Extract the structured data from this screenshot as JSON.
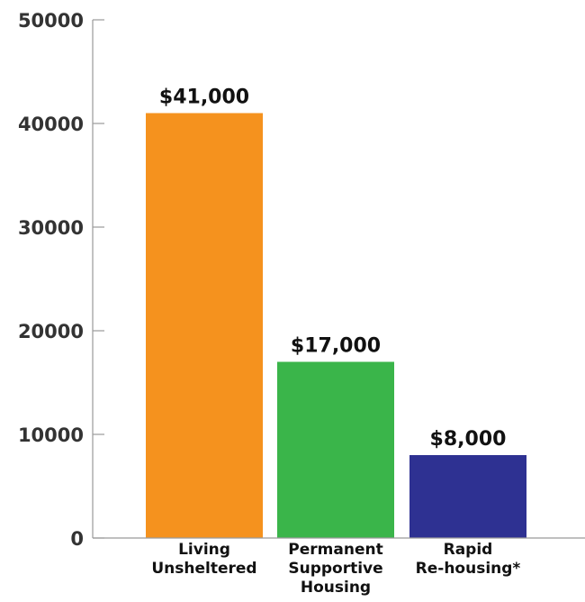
{
  "chart_data": {
    "type": "bar",
    "categories": [
      [
        "Living",
        "Unsheltered"
      ],
      [
        "Permanent",
        "Supportive",
        "Housing"
      ],
      [
        "Rapid",
        "Re-housing*"
      ]
    ],
    "values": [
      41000,
      17000,
      8000
    ],
    "data_labels": [
      "$41,000",
      "$17,000",
      "$8,000"
    ],
    "colors": [
      "#F5921E",
      "#3AB54A",
      "#2E3192"
    ],
    "ylim": [
      0,
      50000
    ],
    "yticks": [
      0,
      10000,
      20000,
      30000,
      40000,
      50000
    ],
    "ytick_labels": [
      "0",
      "10000",
      "20000",
      "30000",
      "40000",
      "50000"
    ],
    "grid": false,
    "title": "",
    "xlabel": "",
    "ylabel": ""
  }
}
